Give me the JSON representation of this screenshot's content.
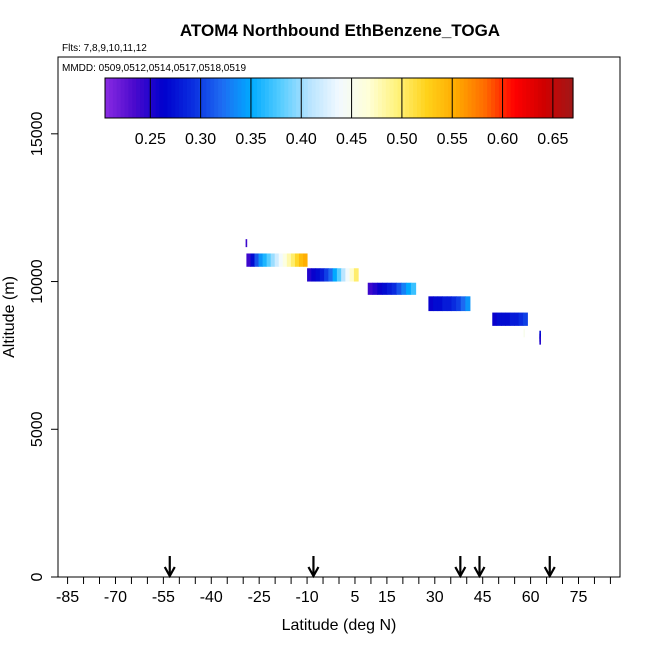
{
  "chart_data": {
    "type": "heatmap",
    "title": "ATOM4 Northbound EthBenzene_TOGA",
    "flights_label": "Flts: 7,8,9,10,11,12",
    "dates_label": "MMDD: 0509,0512,0514,0517,0518,0519",
    "xlabel": "Latitude (deg N)",
    "ylabel": "Altitude (m)",
    "xlim": [
      -88,
      88
    ],
    "ylim": [
      0,
      17600
    ],
    "x_tick_labels": [
      "-85",
      "-70",
      "-55",
      "-40",
      "-25",
      "-10",
      "5",
      "15",
      "30",
      "45",
      "60",
      "75"
    ],
    "x_major_ticks": [
      -85,
      -70,
      -55,
      -40,
      -25,
      -10,
      5,
      15,
      30,
      45,
      60,
      75
    ],
    "x_minor_step": 5,
    "y_tick_labels": [
      "0",
      "5000",
      "10000",
      "15000"
    ],
    "y_ticks": [
      0,
      5000,
      10000,
      15000
    ],
    "colorbar": {
      "range": [
        0.205,
        0.67
      ],
      "tick_labels": [
        "0.25",
        "0.30",
        "0.35",
        "0.40",
        "0.45",
        "0.50",
        "0.55",
        "0.60",
        "0.65"
      ],
      "ticks": [
        0.25,
        0.3,
        0.35,
        0.4,
        0.45,
        0.5,
        0.55,
        0.6,
        0.65
      ],
      "colors": [
        "#8a2be2",
        "#4b0acd",
        "#0000cd",
        "#0a2ee0",
        "#1e6cf2",
        "#00aaff",
        "#55ccff",
        "#b8e4ff",
        "#f2f9ff",
        "#ffffd8",
        "#fff27a",
        "#ffd21a",
        "#ffaa00",
        "#ff6a00",
        "#ff0000",
        "#d00000",
        "#a01818"
      ]
    },
    "arrows_latitude": [
      -53,
      -8,
      38,
      44,
      66
    ],
    "segments": [
      {
        "lat0": -29,
        "lat1": -10,
        "alt_low": 10500,
        "alt_high": 10950,
        "values": [
          0.24,
          0.27,
          0.31,
          0.34,
          0.36,
          0.38,
          0.4,
          0.42,
          0.44,
          0.46,
          0.48,
          0.5,
          0.52,
          0.54,
          0.55
        ]
      },
      {
        "lat0": -10,
        "lat1": 6,
        "alt_low": 10000,
        "alt_high": 10450,
        "values": [
          0.25,
          0.26,
          0.27,
          0.28,
          0.3,
          0.32,
          0.35,
          0.38,
          0.41,
          0.44,
          0.47,
          0.5
        ]
      },
      {
        "lat0": 9,
        "lat1": 24,
        "alt_low": 9550,
        "alt_high": 9960,
        "values": [
          0.24,
          0.25,
          0.26,
          0.27,
          0.28,
          0.29,
          0.31,
          0.33,
          0.35,
          0.37
        ]
      },
      {
        "lat0": 28,
        "lat1": 41,
        "alt_low": 9000,
        "alt_high": 9500,
        "values": [
          0.26,
          0.27,
          0.27,
          0.28,
          0.28,
          0.29,
          0.3,
          0.32,
          0.34
        ]
      },
      {
        "lat0": 48,
        "lat1": 59,
        "alt_low": 8500,
        "alt_high": 8950,
        "values": [
          0.26,
          0.27,
          0.27,
          0.27,
          0.28,
          0.28,
          0.29,
          0.3
        ]
      }
    ],
    "points": [
      {
        "lat": -29,
        "alt": 11300,
        "value": 0.24
      },
      {
        "lat": 58,
        "alt": 8250,
        "value": 0.45
      },
      {
        "lat": 63,
        "alt": 8200,
        "value": 0.27
      },
      {
        "lat": 63,
        "alt": 8100,
        "value": 0.26
      },
      {
        "lat": 63,
        "alt": 8000,
        "value": 0.25
      }
    ]
  }
}
